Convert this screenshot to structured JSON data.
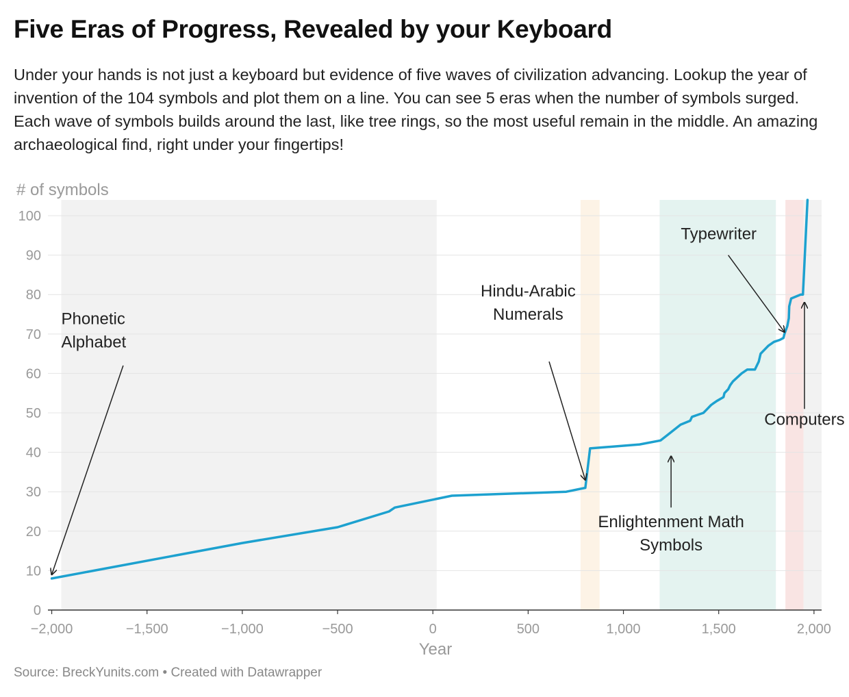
{
  "header": {
    "title": "Five Eras of Progress, Revealed by your Keyboard",
    "subtitle": "Under your hands is not just a keyboard but evidence of five waves of civilization advancing. Lookup the year of invention of the 104 symbols and plot them on a line. You can see 5 eras when the number of symbols surged. Each wave of symbols builds around the last, like tree rings, so the most useful remain in the middle. An amazing archaeological find, right under your fingertips!"
  },
  "footer": {
    "source": "Source: BreckYunits.com • Created with Datawrapper"
  },
  "colors": {
    "line": "#1da1cf",
    "grid": "#e4e4e4",
    "axis": "#333333",
    "tick_label": "#999999",
    "annotation": "#222222"
  },
  "chart_data": {
    "type": "line",
    "xlabel": "Year",
    "ylabel": "# of symbols",
    "xlim": [
      -2020,
      2040
    ],
    "ylim": [
      0,
      104
    ],
    "x_ticks": [
      -2000,
      -1500,
      -1000,
      -500,
      0,
      500,
      1000,
      1500,
      2000
    ],
    "x_tick_labels": [
      "−2,000",
      "−1,500",
      "−1,000",
      "−500",
      "0",
      "500",
      "1,000",
      "1,500",
      "2,000"
    ],
    "y_ticks": [
      0,
      10,
      20,
      30,
      40,
      50,
      60,
      70,
      80,
      90,
      100
    ],
    "y_tick_labels": [
      "0",
      "10",
      "20",
      "30",
      "40",
      "50",
      "60",
      "70",
      "80",
      "90",
      "100"
    ],
    "grid": true,
    "eras": [
      {
        "start": -1950,
        "end": 20,
        "color": "#f2f2f2"
      },
      {
        "start": 775,
        "end": 875,
        "color": "#fdf3e6"
      },
      {
        "start": 1190,
        "end": 1800,
        "color": "#e4f3f0"
      },
      {
        "start": 1850,
        "end": 1945,
        "color": "#f9e4e3"
      },
      {
        "start": 1945,
        "end": 2040,
        "color": "#f2f2f2"
      }
    ],
    "series": [
      {
        "x": [
          -2000,
          -1000,
          -500,
          -230,
          -200,
          100,
          700,
          800,
          825,
          1085,
          1195,
          1300,
          1350,
          1360,
          1420,
          1440,
          1460,
          1475,
          1490,
          1525,
          1530,
          1550,
          1560,
          1575,
          1620,
          1650,
          1690,
          1700,
          1710,
          1720,
          1760,
          1790,
          1820,
          1840,
          1845,
          1860,
          1868,
          1870,
          1880,
          1930,
          1940,
          1942,
          1948,
          1955,
          1960,
          1966
        ],
        "y": [
          8,
          17,
          21,
          25,
          26,
          29,
          30,
          31,
          41,
          42,
          43,
          47,
          48,
          49,
          50,
          51,
          52,
          52.5,
          53,
          54,
          55,
          56,
          57,
          58,
          60,
          61,
          61,
          62,
          63,
          65,
          67,
          68,
          68.5,
          69,
          70,
          72,
          74,
          77,
          79,
          80,
          80,
          80,
          86,
          93,
          98,
          104
        ]
      }
    ],
    "annotations": [
      {
        "lines": [
          "Phonetic",
          "Alphabet"
        ],
        "label_x": -1950,
        "label_y": 72.5,
        "anchor": "start",
        "arrow_from": [
          -1625,
          62
        ],
        "arrow_to": [
          -2000,
          9
        ]
      },
      {
        "lines": [
          "Hindu-Arabic",
          "Numerals"
        ],
        "label_x": 500,
        "label_y": 79.5,
        "anchor": "middle",
        "arrow_from": [
          610,
          63
        ],
        "arrow_to": [
          800,
          33
        ]
      },
      {
        "lines": [
          "Typewriter"
        ],
        "label_x": 1500,
        "label_y": 94,
        "anchor": "middle",
        "arrow_from": [
          1550,
          90
        ],
        "arrow_to": [
          1845,
          70.5
        ]
      },
      {
        "lines": [
          "Enlightenment Math",
          "Symbols"
        ],
        "label_x": 1250,
        "label_y": 21,
        "anchor": "middle",
        "arrow_from": [
          1250,
          26
        ],
        "arrow_to": [
          1250,
          39
        ]
      },
      {
        "lines": [
          "Computers"
        ],
        "label_x": 1950,
        "label_y": 47,
        "anchor": "middle",
        "arrow_from": [
          1950,
          51
        ],
        "arrow_to": [
          1950,
          78
        ]
      }
    ]
  }
}
